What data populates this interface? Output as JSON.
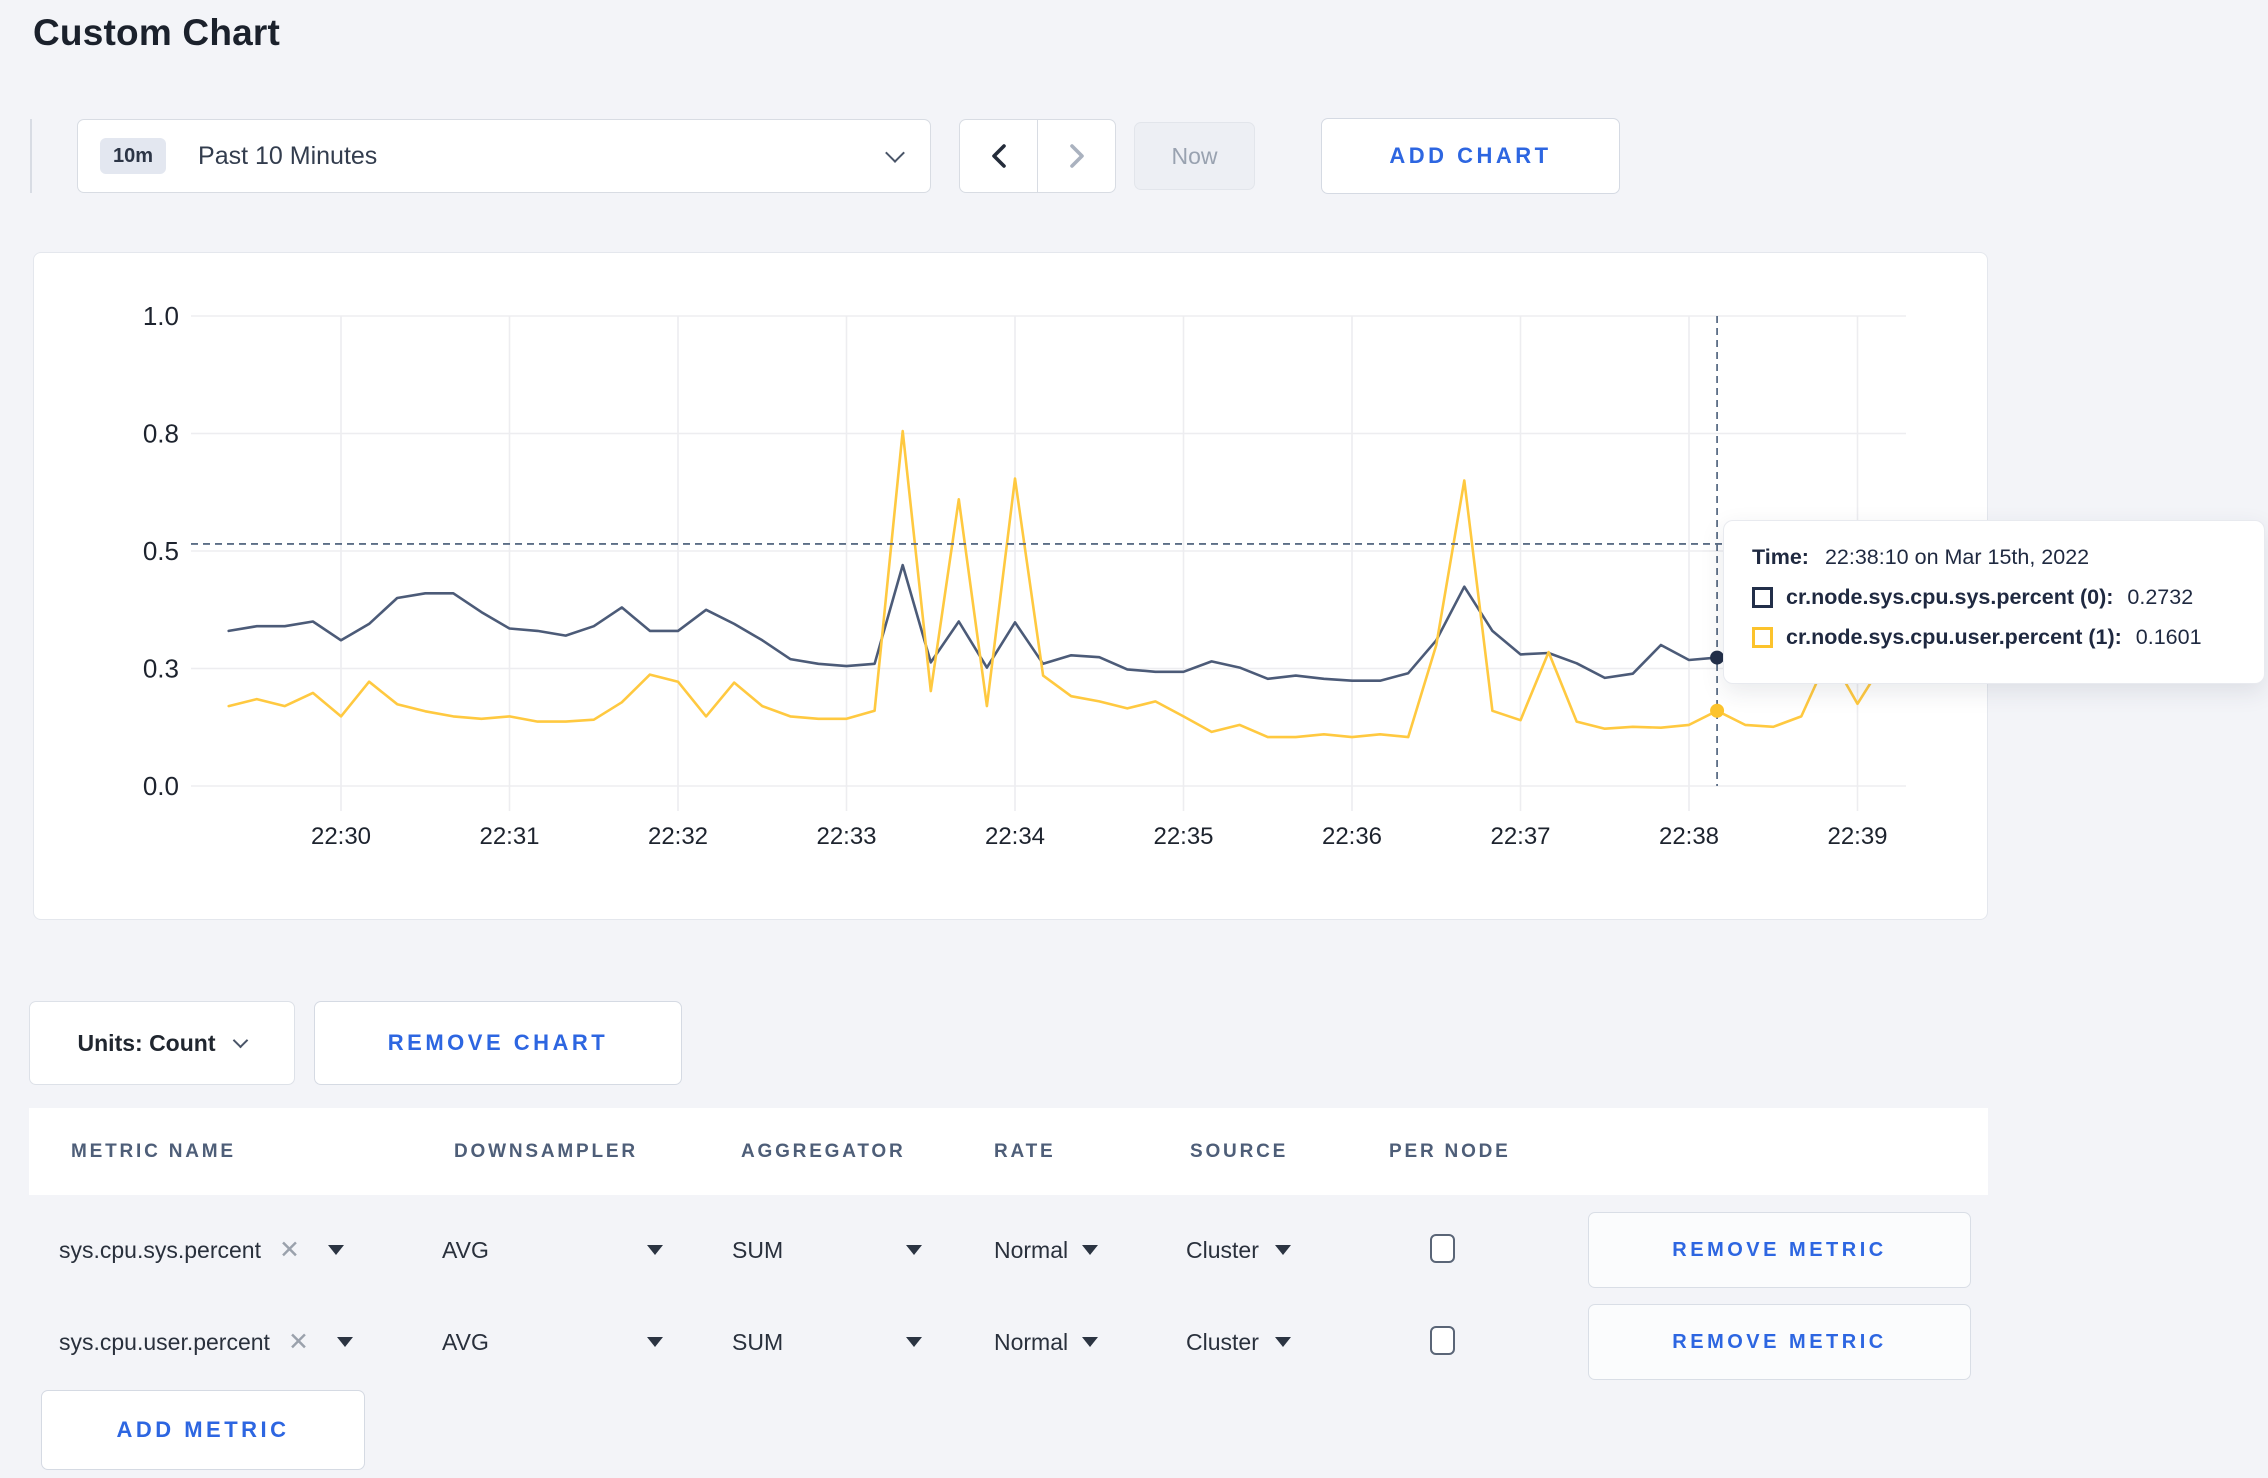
{
  "page": {
    "title": "Custom Chart"
  },
  "colors": {
    "accent_blue": "#2d66e1",
    "series_sys": "#4c5b78",
    "series_user": "#ffc940",
    "swatch_sys": "#222f49",
    "swatch_user": "#fcc32c",
    "crosshair": "#5c6e86",
    "grid": "#ededf0"
  },
  "icons": {
    "range_dropdown": "chevron-down-icon",
    "prev": "chevron-left-icon",
    "next": "chevron-right-icon",
    "units_dropdown": "chevron-down-icon",
    "cell_dropdown": "triangle-down-icon",
    "metric_remove": "x-icon"
  },
  "toolbar": {
    "range_badge": "10m",
    "range_label": "Past 10 Minutes",
    "now_label": "Now",
    "add_chart_label": "ADD CHART"
  },
  "chart_data": {
    "type": "line",
    "title": "",
    "xlabel": "",
    "ylabel": "",
    "ylim": [
      0,
      1
    ],
    "grid": true,
    "x_start": "22:29:20",
    "sample_interval_seconds": 10,
    "x_ticks": [
      "22:30",
      "22:31",
      "22:32",
      "22:33",
      "22:34",
      "22:35",
      "22:36",
      "22:37",
      "22:38",
      "22:39"
    ],
    "y_ticks": [
      {
        "v": 1.0,
        "label": "1.0"
      },
      {
        "v": 0.75,
        "label": "0.8"
      },
      {
        "v": 0.5,
        "label": "0.5"
      },
      {
        "v": 0.25,
        "label": "0.3"
      },
      {
        "v": 0.0,
        "label": "0.0"
      }
    ],
    "series": [
      {
        "name": "cr.node.sys.cpu.sys.percent",
        "color": "#4c5b78",
        "swatch": "#222f49",
        "values": [
          0.33,
          0.34,
          0.34,
          0.35,
          0.31,
          0.345,
          0.4,
          0.41,
          0.41,
          0.37,
          0.335,
          0.33,
          0.32,
          0.34,
          0.38,
          0.33,
          0.33,
          0.375,
          0.345,
          0.31,
          0.27,
          0.26,
          0.255,
          0.26,
          0.47,
          0.263,
          0.35,
          0.252,
          0.348,
          0.26,
          0.278,
          0.274,
          0.248,
          0.243,
          0.243,
          0.265,
          0.252,
          0.228,
          0.235,
          0.228,
          0.224,
          0.224,
          0.24,
          0.31,
          0.424,
          0.33,
          0.28,
          0.283,
          0.261,
          0.23,
          0.239,
          0.3,
          0.268,
          0.2732,
          0.3,
          0.28,
          0.27,
          0.29,
          0.3,
          0.3
        ]
      },
      {
        "name": "cr.node.sys.cpu.user.percent",
        "color": "#ffc940",
        "swatch": "#fcc32c",
        "values": [
          0.17,
          0.185,
          0.17,
          0.198,
          0.148,
          0.222,
          0.174,
          0.159,
          0.148,
          0.143,
          0.148,
          0.137,
          0.137,
          0.141,
          0.178,
          0.237,
          0.222,
          0.148,
          0.22,
          0.17,
          0.148,
          0.143,
          0.143,
          0.16,
          0.755,
          0.202,
          0.61,
          0.17,
          0.654,
          0.235,
          0.191,
          0.18,
          0.165,
          0.18,
          0.148,
          0.115,
          0.13,
          0.104,
          0.104,
          0.11,
          0.104,
          0.11,
          0.104,
          0.3,
          0.65,
          0.16,
          0.14,
          0.285,
          0.137,
          0.122,
          0.126,
          0.124,
          0.13,
          0.1601,
          0.13,
          0.126,
          0.148,
          0.28,
          0.175,
          0.27
        ]
      }
    ],
    "crosshair": {
      "index": 53,
      "time": "22:38:10",
      "hline_value": 0.515,
      "values": [
        0.2732,
        0.1601
      ]
    },
    "legend_position": "tooltip"
  },
  "tooltip": {
    "time_label": "Time:",
    "time_value": "22:38:10 on Mar 15th, 2022",
    "rows": [
      {
        "name": "cr.node.sys.cpu.sys.percent (0):",
        "value": "0.2732"
      },
      {
        "name": "cr.node.sys.cpu.user.percent (1):",
        "value": "0.1601"
      }
    ]
  },
  "chart_controls": {
    "units_label": "Units: Count",
    "remove_chart_label": "REMOVE CHART",
    "add_metric_label": "ADD METRIC"
  },
  "metrics_table": {
    "headers": [
      "METRIC NAME",
      "DOWNSAMPLER",
      "AGGREGATOR",
      "RATE",
      "SOURCE",
      "PER NODE"
    ],
    "rows": [
      {
        "metric": "sys.cpu.sys.percent",
        "remove_symbol": "✕",
        "downsampler": "AVG",
        "aggregator": "SUM",
        "rate": "Normal",
        "source": "Cluster",
        "per_node_checked": false,
        "remove_label": "REMOVE METRIC"
      },
      {
        "metric": "sys.cpu.user.percent",
        "remove_symbol": "✕",
        "downsampler": "AVG",
        "aggregator": "SUM",
        "rate": "Normal",
        "source": "Cluster",
        "per_node_checked": false,
        "remove_label": "REMOVE METRIC"
      }
    ]
  }
}
